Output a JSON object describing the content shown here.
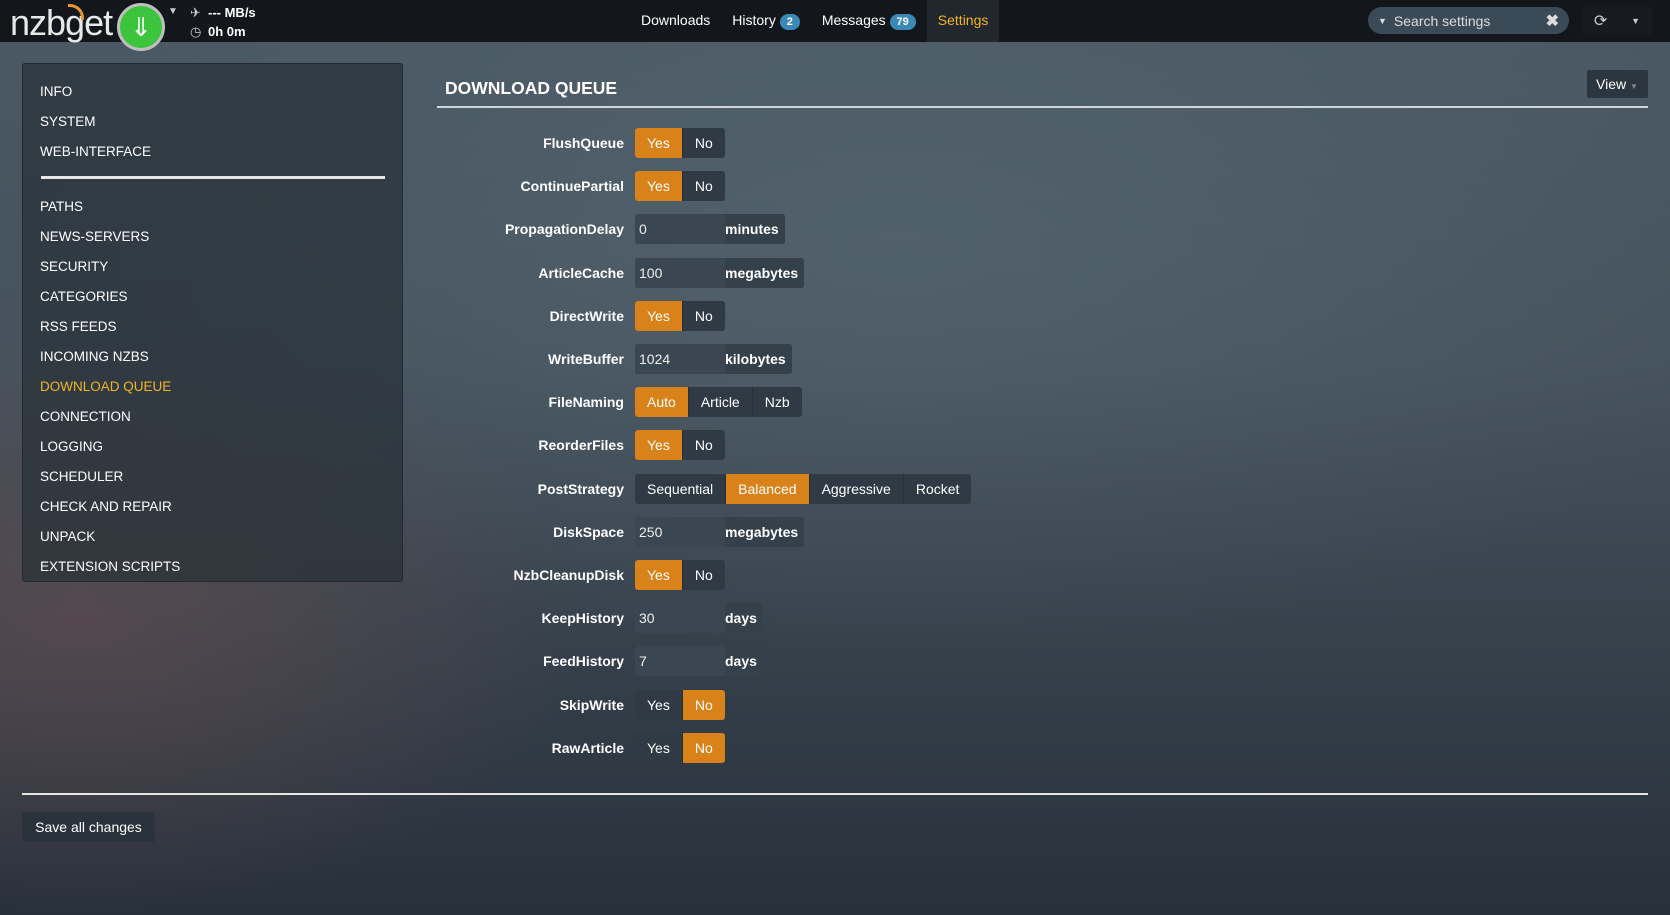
{
  "app": {
    "logo": "nzbget",
    "speed": "--- MB/s",
    "time": "0h 0m"
  },
  "nav": {
    "items": [
      {
        "label": "Downloads"
      },
      {
        "label": "History",
        "badge": "2"
      },
      {
        "label": "Messages",
        "badge": "79"
      },
      {
        "label": "Settings",
        "active": true
      }
    ]
  },
  "search": {
    "placeholder": "Search settings"
  },
  "sidebar": {
    "group1": [
      "INFO",
      "SYSTEM",
      "WEB-INTERFACE"
    ],
    "group2": [
      "PATHS",
      "NEWS-SERVERS",
      "SECURITY",
      "CATEGORIES",
      "RSS FEEDS",
      "INCOMING NZBS",
      "DOWNLOAD QUEUE",
      "CONNECTION",
      "LOGGING",
      "SCHEDULER",
      "CHECK AND REPAIR",
      "UNPACK",
      "EXTENSION SCRIPTS"
    ],
    "selected": "DOWNLOAD QUEUE"
  },
  "section": {
    "title": "DOWNLOAD QUEUE",
    "view_label": "View"
  },
  "settings": [
    {
      "label": "FlushQueue",
      "type": "toggle",
      "options": [
        "Yes",
        "No"
      ],
      "selected": "Yes"
    },
    {
      "label": "ContinuePartial",
      "type": "toggle",
      "options": [
        "Yes",
        "No"
      ],
      "selected": "Yes"
    },
    {
      "label": "PropagationDelay",
      "type": "input",
      "value": "0",
      "unit": "minutes"
    },
    {
      "label": "ArticleCache",
      "type": "input",
      "value": "100",
      "unit": "megabytes"
    },
    {
      "label": "DirectWrite",
      "type": "toggle",
      "options": [
        "Yes",
        "No"
      ],
      "selected": "Yes"
    },
    {
      "label": "WriteBuffer",
      "type": "input",
      "value": "1024",
      "unit": "kilobytes"
    },
    {
      "label": "FileNaming",
      "type": "toggle",
      "options": [
        "Auto",
        "Article",
        "Nzb"
      ],
      "selected": "Auto"
    },
    {
      "label": "ReorderFiles",
      "type": "toggle",
      "options": [
        "Yes",
        "No"
      ],
      "selected": "Yes"
    },
    {
      "label": "PostStrategy",
      "type": "toggle",
      "options": [
        "Sequential",
        "Balanced",
        "Aggressive",
        "Rocket"
      ],
      "selected": "Balanced"
    },
    {
      "label": "DiskSpace",
      "type": "input",
      "value": "250",
      "unit": "megabytes"
    },
    {
      "label": "NzbCleanupDisk",
      "type": "toggle",
      "options": [
        "Yes",
        "No"
      ],
      "selected": "Yes"
    },
    {
      "label": "KeepHistory",
      "type": "input",
      "value": "30",
      "unit": "days"
    },
    {
      "label": "FeedHistory",
      "type": "input",
      "value": "7",
      "unit": "days"
    },
    {
      "label": "SkipWrite",
      "type": "toggle",
      "options": [
        "Yes",
        "No"
      ],
      "selected": "No"
    },
    {
      "label": "RawArticle",
      "type": "toggle",
      "options": [
        "Yes",
        "No"
      ],
      "selected": "No"
    }
  ],
  "footer": {
    "save_label": "Save all changes"
  },
  "colors": {
    "accent": "#d9821a",
    "active_nav": "#f0b429",
    "badge": "#3a8ab8",
    "play": "#3cc43c"
  }
}
